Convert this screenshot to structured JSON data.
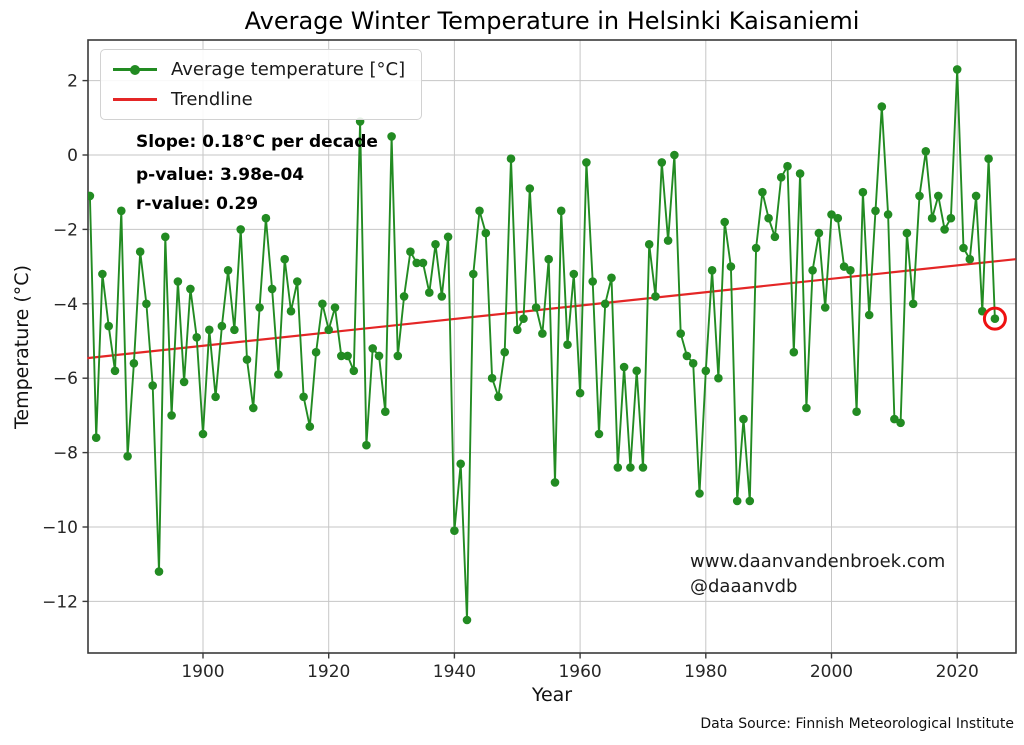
{
  "title": "Average Winter Temperature in Helsinki Kaisaniemi",
  "axes": {
    "xlabel": "Year",
    "ylabel": "Temperature (°C)"
  },
  "legend": {
    "series_label": "Average temperature [°C]",
    "trend_label": "Trendline"
  },
  "annotations": {
    "slope": "Slope: 0.18°C per decade",
    "p_value": "p-value: 3.98e-04",
    "r_value": "r-value: 0.29"
  },
  "watermark": {
    "line1": "www.daanvandenbroek.com",
    "line2": "@daaanvdb"
  },
  "footnote": "Data Source: Finnish Meteorological Institute",
  "colors": {
    "series": "#228B22",
    "trend": "#e42626",
    "highlight": "#ee1111",
    "grid": "#c6c6c6",
    "spine": "#3a3a3a",
    "tick_text": "#262626"
  },
  "chart_data": {
    "type": "line",
    "title": "Average Winter Temperature in Helsinki Kaisaniemi",
    "xlabel": "Year",
    "ylabel": "Temperature (°C)",
    "grid": true,
    "legend_position": "upper left",
    "xlim": [
      1881.6,
      2029.3
    ],
    "ylim": [
      -13.4,
      3.1
    ],
    "xticks": [
      1900,
      1920,
      1940,
      1960,
      1980,
      2000,
      2020
    ],
    "yticks": [
      {
        "v": 2,
        "label": "2"
      },
      {
        "v": 0,
        "label": "0"
      },
      {
        "v": -2,
        "label": "−2"
      },
      {
        "v": -4,
        "label": "−4"
      },
      {
        "v": -6,
        "label": "−6"
      },
      {
        "v": -8,
        "label": "−8"
      },
      {
        "v": -10,
        "label": "−10"
      },
      {
        "v": -12,
        "label": "−12"
      }
    ],
    "years": {
      "start": 1882,
      "end": 2026,
      "step": 1
    },
    "series": [
      {
        "name": "Average temperature [°C]",
        "marker": "circle",
        "values": [
          -1.1,
          -7.6,
          -3.2,
          -4.6,
          -5.8,
          -1.5,
          -8.1,
          -5.6,
          -2.6,
          -4.0,
          -6.2,
          -11.2,
          -2.2,
          -7.0,
          -3.4,
          -6.1,
          -3.6,
          -4.9,
          -7.5,
          -4.7,
          -6.5,
          -4.6,
          -3.1,
          -4.7,
          -2.0,
          -5.5,
          -6.8,
          -4.1,
          -1.7,
          -3.6,
          -5.9,
          -2.8,
          -4.2,
          -3.4,
          -6.5,
          -7.3,
          -5.3,
          -4.0,
          -4.7,
          -4.1,
          -5.4,
          -5.4,
          -5.8,
          0.9,
          -7.8,
          -5.2,
          -5.4,
          -6.9,
          0.5,
          -5.4,
          -3.8,
          -2.6,
          -2.9,
          -2.9,
          -3.7,
          -2.4,
          -3.8,
          -2.2,
          -10.1,
          -8.3,
          -12.5,
          -3.2,
          -1.5,
          -2.1,
          -6.0,
          -6.5,
          -5.3,
          -0.1,
          -4.7,
          -4.4,
          -0.9,
          -4.1,
          -4.8,
          -2.8,
          -8.8,
          -1.5,
          -5.1,
          -3.2,
          -6.4,
          -0.2,
          -3.4,
          -7.5,
          -4.0,
          -3.3,
          -8.4,
          -5.7,
          -8.4,
          -5.8,
          -8.4,
          -2.4,
          -3.8,
          -0.2,
          -2.3,
          0.0,
          -4.8,
          -5.4,
          -5.6,
          -9.1,
          -5.8,
          -3.1,
          -6.0,
          -1.8,
          -3.0,
          -9.3,
          -7.1,
          -9.3,
          -2.5,
          -1.0,
          -1.7,
          -2.2,
          -0.6,
          -0.3,
          -5.3,
          -0.5,
          -6.8,
          -3.1,
          -2.1,
          -4.1,
          -1.6,
          -1.7,
          -3.0,
          -3.1,
          -6.9,
          -1.0,
          -4.3,
          -1.5,
          1.3,
          -1.6,
          -7.1,
          -7.2,
          -2.1,
          -4.0,
          -1.1,
          0.1,
          -1.7,
          -1.1,
          -2.0,
          -1.7,
          2.3,
          -2.5,
          -2.8,
          -1.1,
          -4.2,
          -0.1,
          -4.4
        ]
      }
    ],
    "trendline": {
      "name": "Trendline",
      "slope_c_per_decade": 0.18,
      "p_value": "3.98e-04",
      "r_value": 0.29,
      "start": {
        "year": 1881.6,
        "value": -5.46
      },
      "end": {
        "year": 2029.3,
        "value": -2.8
      }
    },
    "highlighted_point": {
      "year": 2026,
      "value": -4.4,
      "marker": "red-circle-annotation"
    }
  }
}
